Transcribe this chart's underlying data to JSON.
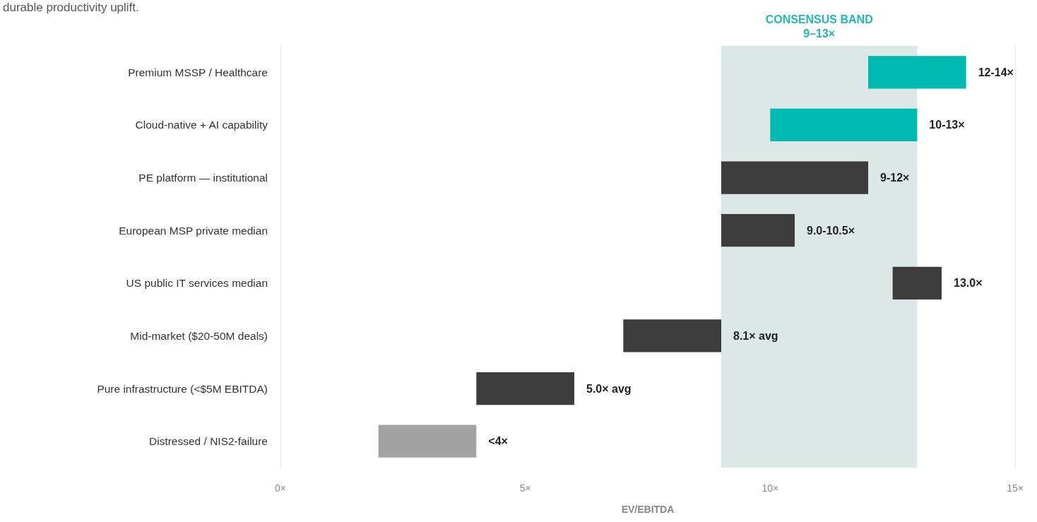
{
  "chart_data": {
    "type": "bar",
    "orientation": "horizontal",
    "xlabel": "EV/EBITDA",
    "categories": [
      "Premium MSSP / Healthcare",
      "Cloud-native + AI capability",
      "PE platform — institutional",
      "European MSP private median",
      "US public IT services median",
      "Mid-market ($20-50M deals)",
      "Pure infrastructure (<$5M EBITDA)",
      "Distressed / NIS2-failure"
    ],
    "base": [
      12,
      10,
      9,
      9,
      12.5,
      7,
      4,
      2
    ],
    "values": [
      2,
      3,
      3,
      1.5,
      1,
      2,
      2,
      2
    ],
    "colors": [
      "#00bab2",
      "#00bab2",
      "#3d3d3d",
      "#3d3d3d",
      "#3d3d3d",
      "#3d3d3d",
      "#3d3d3d",
      "#a3a3a3"
    ],
    "value_labels": [
      "12-14×",
      "10-13×",
      "9-12×",
      "9.0-10.5×",
      null,
      null,
      null,
      "<4×"
    ],
    "xlim": [
      0,
      15
    ],
    "xticks": [
      {
        "value": 0,
        "label": "0×"
      },
      {
        "value": 5,
        "label": "5×"
      },
      {
        "value": 10,
        "label": "10×"
      },
      {
        "value": 15,
        "label": "15×"
      }
    ],
    "bands": [
      {
        "axis": "x",
        "from": 9,
        "to": 13,
        "label": "CONSENSUS BAND\n9–13×",
        "color": "#dce8e8"
      }
    ],
    "annotations": [
      "durable productivity uplift.",
      {
        "text": "13.0×",
        "x": 13.5,
        "y": "US public IT services median"
      },
      {
        "text": "8.1× avg",
        "x": 9,
        "y": "Mid-market ($20-50M deals)"
      },
      {
        "text": "5.0× avg",
        "x": 6,
        "y": "Pure infrastructure (<$5M EBITDA)"
      }
    ],
    "grid": false
  }
}
